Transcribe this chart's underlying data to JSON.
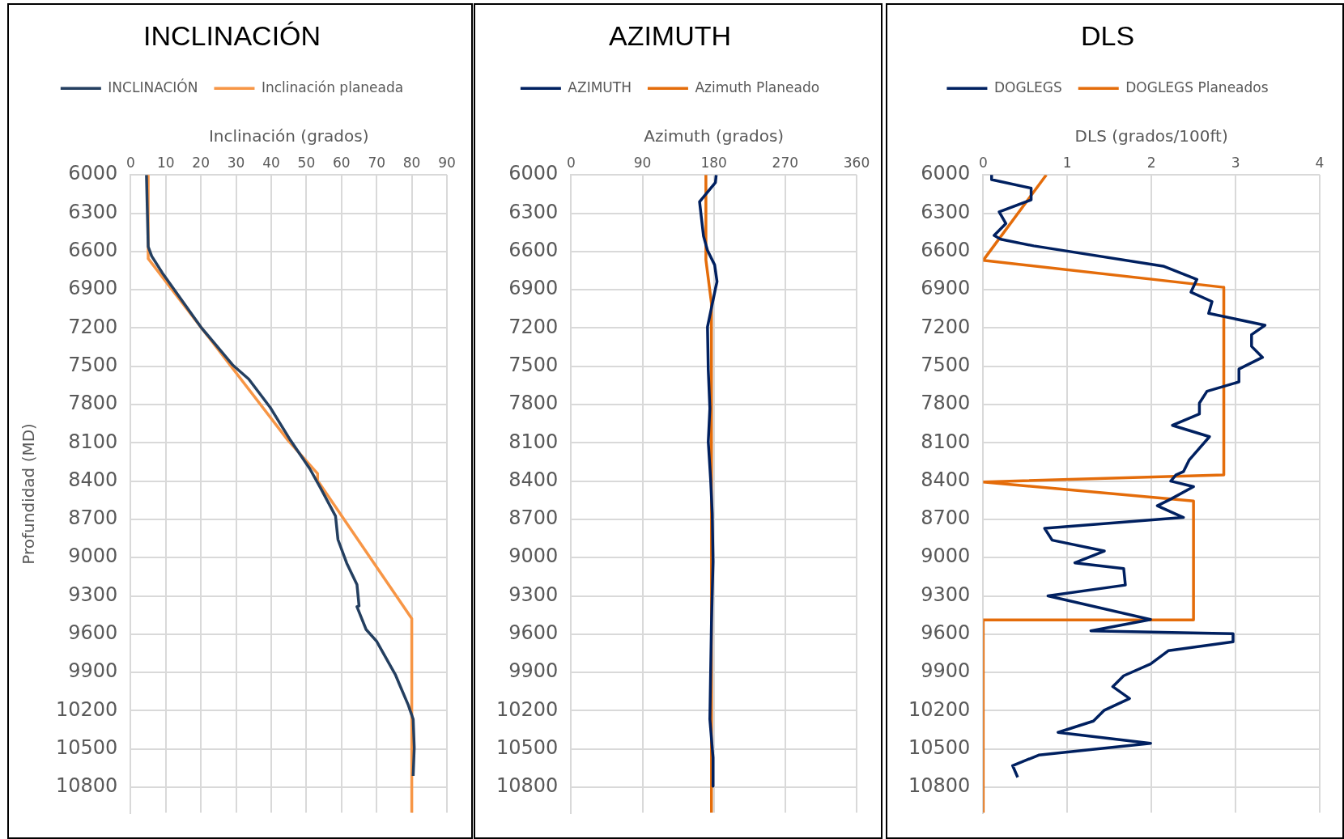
{
  "chart_data": [
    {
      "type": "line",
      "title": "INCLINACIÓN",
      "xlabel": "Inclinación (grados)",
      "ylabel": "Profundidad (MD)",
      "xlim": [
        0,
        90
      ],
      "xticks": [
        0,
        10,
        20,
        30,
        40,
        50,
        60,
        70,
        80,
        90
      ],
      "ylim": [
        11000,
        6000
      ],
      "yticks": [
        6000,
        6300,
        6600,
        6900,
        7200,
        7500,
        7800,
        8100,
        8400,
        8700,
        9000,
        9300,
        9600,
        9900,
        10200,
        10500,
        10800
      ],
      "grid": true,
      "legend": "top",
      "marker": "none",
      "series": [
        {
          "name": "INCLINACIÓN",
          "color": "#243f60",
          "x": [
            4.5,
            5,
            6,
            9,
            20,
            29,
            33.6,
            39.7,
            45.5,
            51,
            54,
            58.3,
            59,
            61.5,
            64.4,
            65,
            64.4,
            67,
            70,
            75.3,
            76.7,
            79,
            80.4,
            80.7,
            80.4
          ],
          "values": [
            6000,
            6563,
            6637,
            6767,
            7193,
            7489,
            7600,
            7822,
            8081,
            8304,
            8452,
            8674,
            8859,
            9044,
            9211,
            9378,
            9385,
            9563,
            9656,
            9915,
            10007,
            10155,
            10267,
            10489,
            10711
          ]
        },
        {
          "name": "Inclinación planeada",
          "color": "#f79646",
          "x": [
            5,
            5,
            20,
            44.8,
            53.2,
            53.2,
            80,
            80
          ],
          "values": [
            6000,
            6656,
            7193,
            8081,
            8341,
            8396,
            9478,
            11000
          ]
        }
      ]
    },
    {
      "type": "line",
      "title": "AZIMUTH",
      "xlabel": "Azimuth (grados)",
      "xlim": [
        0,
        360
      ],
      "xticks": [
        0,
        90,
        180,
        270,
        360
      ],
      "ylim": [
        11000,
        6000
      ],
      "yticks": [
        6000,
        6300,
        6600,
        6900,
        7200,
        7500,
        7800,
        8100,
        8400,
        8700,
        9000,
        9300,
        9600,
        9900,
        10200,
        10500,
        10800
      ],
      "grid": true,
      "legend": "top",
      "marker": "none",
      "series": [
        {
          "name": "AZIMUTH",
          "color": "#002060",
          "x": [
            183,
            182,
            162,
            167,
            172,
            181,
            184,
            182,
            172,
            173,
            175,
            173,
            176,
            178,
            179,
            177,
            175,
            179,
            179
          ],
          "values": [
            6000,
            6060,
            6210,
            6480,
            6592,
            6705,
            6836,
            6892,
            7192,
            7530,
            7830,
            8092,
            8392,
            8655,
            9030,
            9517,
            10267,
            10567,
            10792
          ]
        },
        {
          "name": "Azimuth Planeado",
          "color": "#e46c0a",
          "x": [
            170,
            170,
            177,
            177
          ],
          "values": [
            6000,
            6667,
            7005,
            11000
          ]
        }
      ]
    },
    {
      "type": "line",
      "title": "DLS",
      "xlabel": "DLS (grados/100ft)",
      "xlim": [
        0,
        4
      ],
      "xticks": [
        0,
        1,
        2,
        3,
        4
      ],
      "ylim": [
        11000,
        6000
      ],
      "yticks": [
        6000,
        6300,
        6600,
        6900,
        7200,
        7500,
        7800,
        8100,
        8400,
        8700,
        9000,
        9300,
        9600,
        9900,
        10200,
        10500,
        10800
      ],
      "grid": true,
      "legend": "top",
      "marker": "none",
      "series": [
        {
          "name": "DOGLEGS",
          "color": "#002060",
          "x": [
            0.1,
            0.1,
            0.57,
            0.57,
            0.19,
            0.27,
            0.13,
            0.21,
            0.6,
            2.14,
            2.54,
            2.47,
            2.72,
            2.68,
            3.35,
            3.19,
            3.19,
            3.32,
            3.04,
            3.04,
            2.66,
            2.57,
            2.57,
            2.25,
            2.69,
            2.45,
            2.38,
            2.29,
            2.23,
            2.5,
            2.23,
            2.07,
            2.38,
            0.73,
            0.82,
            1.44,
            1.09,
            1.67,
            1.69,
            0.77,
            1.99,
            1.28,
            2.97,
            2.97,
            2.2,
            1.99,
            1.67,
            1.54,
            1.74,
            1.44,
            1.31,
            0.89,
            1.99,
            0.66,
            0.35,
            0.41
          ],
          "values": [
            6000,
            6037,
            6104,
            6196,
            6289,
            6381,
            6474,
            6504,
            6556,
            6715,
            6819,
            6919,
            6993,
            7085,
            7178,
            7252,
            7344,
            7430,
            7522,
            7622,
            7696,
            7789,
            7874,
            7963,
            8052,
            8233,
            8326,
            8352,
            8400,
            8444,
            8541,
            8593,
            8685,
            8770,
            8863,
            8948,
            9041,
            9085,
            9215,
            9300,
            9485,
            9574,
            9596,
            9659,
            9730,
            9833,
            9926,
            10011,
            10104,
            10196,
            10281,
            10370,
            10456,
            10548,
            10630,
            10722
          ]
        },
        {
          "name": "DOGLEGS Planeados",
          "color": "#e46c0a",
          "x": [
            0.75,
            0,
            2.86,
            2.86,
            0,
            2.5,
            2.5,
            0,
            0
          ],
          "values": [
            6000,
            6670,
            6881,
            8352,
            8407,
            8556,
            9489,
            9489,
            11000
          ]
        }
      ]
    }
  ]
}
